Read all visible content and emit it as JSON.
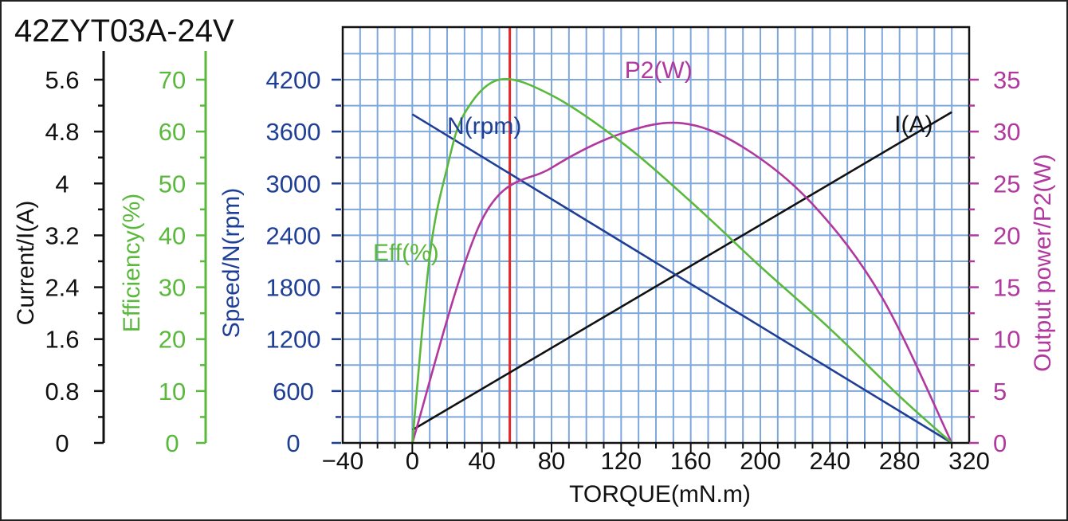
{
  "chart_data": {
    "type": "line",
    "title": "42ZYT03A-24V",
    "xlabel": "TORQUE(mN.m)",
    "xlim": [
      -40,
      320
    ],
    "x_ticks": [
      "−40",
      "0",
      "40",
      "80",
      "120",
      "160",
      "200",
      "240",
      "280",
      "320"
    ],
    "marker_torque": 56,
    "colors": {
      "current": "#111111",
      "efficiency": "#5ab93c",
      "speed": "#1f3f96",
      "power": "#b0389f",
      "marker": "#e8262a",
      "grid": "#7fa7dc"
    },
    "axes": {
      "current": {
        "title": "Current/I(A)",
        "range": [
          0,
          5.6
        ],
        "ticks": [
          "0",
          "0.8",
          "1.6",
          "2.4",
          "3.2",
          "4",
          "4.8",
          "5.6"
        ]
      },
      "efficiency": {
        "title": "Efficiency(%)",
        "range": [
          0,
          70
        ],
        "ticks": [
          "0",
          "10",
          "20",
          "30",
          "40",
          "50",
          "60",
          "70"
        ]
      },
      "speed": {
        "title": "Speed/N(rpm)",
        "range": [
          0,
          4200
        ],
        "ticks": [
          "0",
          "600",
          "1200",
          "1800",
          "2400",
          "3000",
          "3600",
          "4200"
        ]
      },
      "power": {
        "title": "Output power/P2(W)",
        "range": [
          0,
          35
        ],
        "ticks": [
          "0",
          "5",
          "10",
          "15",
          "20",
          "25",
          "30",
          "35"
        ]
      }
    },
    "series": [
      {
        "name": "I(A)",
        "axis": "current",
        "x": [
          0,
          310
        ],
        "values": [
          0.2,
          5.1
        ]
      },
      {
        "name": "N(rpm)",
        "axis": "speed",
        "x": [
          0,
          310
        ],
        "values": [
          3800,
          0
        ]
      },
      {
        "name": "P2(W)",
        "axis": "power",
        "x": [
          0,
          40,
          80,
          120,
          155,
          190,
          230,
          270,
          310
        ],
        "values": [
          0,
          21.5,
          26.5,
          29.8,
          30.8,
          28.5,
          23,
          14,
          0
        ]
      },
      {
        "name": "Eff(%)",
        "axis": "efficiency",
        "x": [
          0,
          10,
          20,
          30,
          50,
          80,
          120,
          160,
          200,
          240,
          280,
          310
        ],
        "values": [
          0,
          36,
          53,
          63.5,
          70,
          67,
          58,
          46.5,
          34,
          22,
          9,
          0
        ]
      }
    ]
  }
}
